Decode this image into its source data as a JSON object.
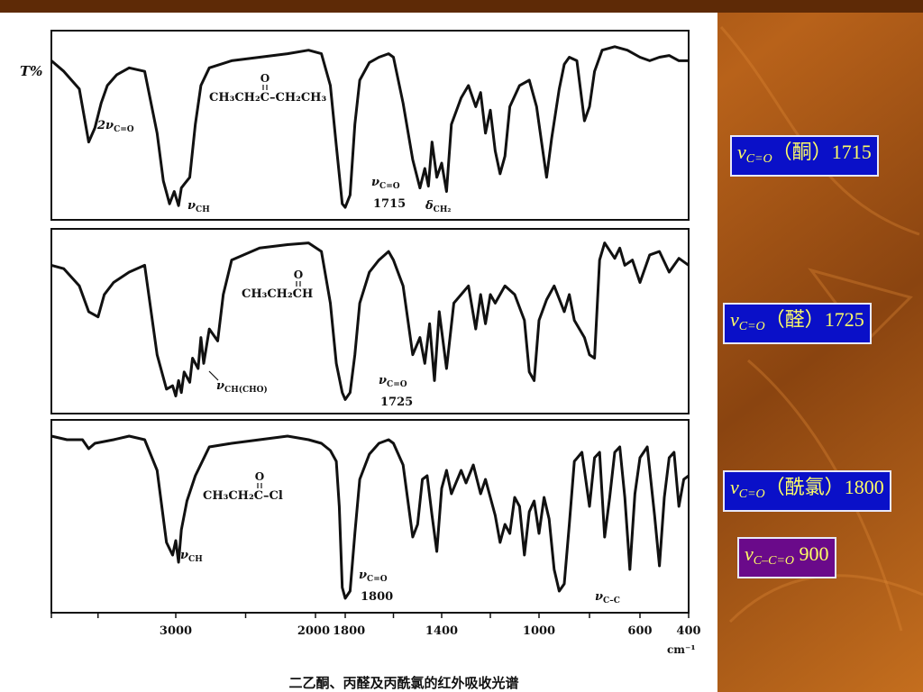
{
  "chart_data": {
    "type": "line",
    "ylabel": "T%",
    "xlabel": "cm⁻¹",
    "x_ticks": [
      3000,
      2000,
      1800,
      1400,
      1000,
      600,
      400
    ],
    "x_tick_labels": [
      "3000",
      "2000",
      "1800",
      "1400",
      "1000",
      "600",
      "400"
    ],
    "caption": "二乙酮、丙醛及丙酰氯的红外吸收光谱",
    "panels": [
      {
        "molecule": {
          "carbonyl_o": "O",
          "left": "CH₃CH₂C",
          "right": "–CH₂CH₃"
        },
        "annotations": [
          {
            "sym": "2ν",
            "sub": "C=O",
            "line2": ""
          },
          {
            "sym": "ν",
            "sub": "CH",
            "line2": ""
          },
          {
            "sym": "ν",
            "sub": "C=O",
            "line2": "1715"
          },
          {
            "sym": "δ",
            "sub": "CH₂",
            "line2": ""
          }
        ],
        "trace": [
          [
            3800,
            14
          ],
          [
            3720,
            20
          ],
          [
            3620,
            30
          ],
          [
            3560,
            60
          ],
          [
            3520,
            52
          ],
          [
            3480,
            38
          ],
          [
            3440,
            28
          ],
          [
            3380,
            22
          ],
          [
            3300,
            18
          ],
          [
            3200,
            20
          ],
          [
            3120,
            55
          ],
          [
            3080,
            82
          ],
          [
            3040,
            95
          ],
          [
            3010,
            88
          ],
          [
            2980,
            96
          ],
          [
            2960,
            86
          ],
          [
            2940,
            84
          ],
          [
            2900,
            80
          ],
          [
            2860,
            50
          ],
          [
            2820,
            28
          ],
          [
            2760,
            18
          ],
          [
            2600,
            14
          ],
          [
            2400,
            12
          ],
          [
            2200,
            10
          ],
          [
            2050,
            8
          ],
          [
            1960,
            10
          ],
          [
            1900,
            28
          ],
          [
            1860,
            62
          ],
          [
            1820,
            95
          ],
          [
            1800,
            97
          ],
          [
            1780,
            90
          ],
          [
            1760,
            50
          ],
          [
            1740,
            25
          ],
          [
            1700,
            15
          ],
          [
            1660,
            12
          ],
          [
            1620,
            10
          ],
          [
            1600,
            12
          ],
          [
            1560,
            38
          ],
          [
            1520,
            70
          ],
          [
            1490,
            86
          ],
          [
            1470,
            75
          ],
          [
            1455,
            85
          ],
          [
            1440,
            60
          ],
          [
            1420,
            80
          ],
          [
            1400,
            72
          ],
          [
            1380,
            88
          ],
          [
            1360,
            50
          ],
          [
            1320,
            35
          ],
          [
            1290,
            28
          ],
          [
            1260,
            40
          ],
          [
            1240,
            32
          ],
          [
            1220,
            55
          ],
          [
            1200,
            42
          ],
          [
            1180,
            65
          ],
          [
            1160,
            78
          ],
          [
            1140,
            68
          ],
          [
            1120,
            40
          ],
          [
            1080,
            28
          ],
          [
            1040,
            25
          ],
          [
            1010,
            40
          ],
          [
            990,
            60
          ],
          [
            970,
            80
          ],
          [
            950,
            58
          ],
          [
            920,
            30
          ],
          [
            900,
            16
          ],
          [
            880,
            12
          ],
          [
            850,
            14
          ],
          [
            820,
            48
          ],
          [
            800,
            40
          ],
          [
            780,
            20
          ],
          [
            750,
            8
          ],
          [
            700,
            6
          ],
          [
            650,
            8
          ],
          [
            600,
            12
          ],
          [
            560,
            14
          ],
          [
            520,
            12
          ],
          [
            480,
            11
          ],
          [
            440,
            14
          ],
          [
            400,
            14
          ]
        ]
      },
      {
        "molecule": {
          "carbonyl_o": "O",
          "left": "CH₃CH₂CH",
          "right": ""
        },
        "annotations": [
          {
            "sym": "ν",
            "sub": "CH(CHO)",
            "line2": ""
          },
          {
            "sym": "ν",
            "sub": "C=O",
            "line2": "1725"
          }
        ],
        "trace": [
          [
            3800,
            18
          ],
          [
            3720,
            20
          ],
          [
            3620,
            30
          ],
          [
            3560,
            45
          ],
          [
            3500,
            48
          ],
          [
            3460,
            35
          ],
          [
            3400,
            28
          ],
          [
            3300,
            22
          ],
          [
            3200,
            18
          ],
          [
            3120,
            70
          ],
          [
            3060,
            90
          ],
          [
            3020,
            88
          ],
          [
            3000,
            94
          ],
          [
            2980,
            85
          ],
          [
            2960,
            92
          ],
          [
            2940,
            80
          ],
          [
            2900,
            86
          ],
          [
            2880,
            72
          ],
          [
            2840,
            78
          ],
          [
            2820,
            60
          ],
          [
            2800,
            75
          ],
          [
            2760,
            55
          ],
          [
            2700,
            62
          ],
          [
            2660,
            35
          ],
          [
            2600,
            15
          ],
          [
            2400,
            8
          ],
          [
            2200,
            6
          ],
          [
            2050,
            5
          ],
          [
            1960,
            10
          ],
          [
            1900,
            40
          ],
          [
            1860,
            75
          ],
          [
            1820,
            92
          ],
          [
            1800,
            96
          ],
          [
            1780,
            92
          ],
          [
            1760,
            70
          ],
          [
            1740,
            40
          ],
          [
            1700,
            22
          ],
          [
            1660,
            15
          ],
          [
            1620,
            10
          ],
          [
            1600,
            15
          ],
          [
            1560,
            30
          ],
          [
            1520,
            70
          ],
          [
            1490,
            60
          ],
          [
            1470,
            75
          ],
          [
            1450,
            52
          ],
          [
            1430,
            85
          ],
          [
            1410,
            45
          ],
          [
            1380,
            78
          ],
          [
            1350,
            40
          ],
          [
            1320,
            35
          ],
          [
            1290,
            30
          ],
          [
            1260,
            55
          ],
          [
            1240,
            35
          ],
          [
            1220,
            52
          ],
          [
            1200,
            35
          ],
          [
            1180,
            40
          ],
          [
            1140,
            30
          ],
          [
            1100,
            35
          ],
          [
            1060,
            50
          ],
          [
            1040,
            80
          ],
          [
            1020,
            85
          ],
          [
            1000,
            50
          ],
          [
            970,
            38
          ],
          [
            940,
            30
          ],
          [
            900,
            45
          ],
          [
            880,
            35
          ],
          [
            860,
            50
          ],
          [
            820,
            60
          ],
          [
            800,
            70
          ],
          [
            780,
            72
          ],
          [
            760,
            15
          ],
          [
            740,
            5
          ],
          [
            700,
            14
          ],
          [
            680,
            8
          ],
          [
            660,
            18
          ],
          [
            630,
            15
          ],
          [
            600,
            28
          ],
          [
            560,
            12
          ],
          [
            520,
            10
          ],
          [
            480,
            22
          ],
          [
            440,
            14
          ],
          [
            400,
            18
          ]
        ]
      },
      {
        "molecule": {
          "carbonyl_o": "O",
          "left": "CH₃CH₂C",
          "right": "–Cl"
        },
        "annotations": [
          {
            "sym": "ν",
            "sub": "CH",
            "line2": ""
          },
          {
            "sym": "ν",
            "sub": "C=O",
            "line2": "1800"
          },
          {
            "sym": "ν",
            "sub": "C–C",
            "line2": ""
          }
        ],
        "trace": [
          [
            3800,
            6
          ],
          [
            3700,
            8
          ],
          [
            3600,
            8
          ],
          [
            3560,
            13
          ],
          [
            3520,
            10
          ],
          [
            3400,
            8
          ],
          [
            3300,
            6
          ],
          [
            3200,
            8
          ],
          [
            3120,
            25
          ],
          [
            3060,
            65
          ],
          [
            3020,
            72
          ],
          [
            3000,
            64
          ],
          [
            2980,
            76
          ],
          [
            2960,
            58
          ],
          [
            2920,
            42
          ],
          [
            2860,
            28
          ],
          [
            2760,
            12
          ],
          [
            2600,
            10
          ],
          [
            2400,
            8
          ],
          [
            2200,
            6
          ],
          [
            2050,
            8
          ],
          [
            1960,
            10
          ],
          [
            1900,
            14
          ],
          [
            1860,
            20
          ],
          [
            1840,
            45
          ],
          [
            1820,
            90
          ],
          [
            1800,
            96
          ],
          [
            1780,
            92
          ],
          [
            1760,
            60
          ],
          [
            1740,
            30
          ],
          [
            1700,
            16
          ],
          [
            1660,
            10
          ],
          [
            1620,
            8
          ],
          [
            1600,
            10
          ],
          [
            1560,
            22
          ],
          [
            1520,
            62
          ],
          [
            1500,
            55
          ],
          [
            1480,
            30
          ],
          [
            1460,
            28
          ],
          [
            1440,
            50
          ],
          [
            1420,
            70
          ],
          [
            1400,
            35
          ],
          [
            1380,
            25
          ],
          [
            1360,
            38
          ],
          [
            1320,
            25
          ],
          [
            1300,
            32
          ],
          [
            1270,
            22
          ],
          [
            1240,
            38
          ],
          [
            1220,
            30
          ],
          [
            1180,
            50
          ],
          [
            1160,
            65
          ],
          [
            1140,
            55
          ],
          [
            1120,
            60
          ],
          [
            1100,
            40
          ],
          [
            1080,
            45
          ],
          [
            1060,
            72
          ],
          [
            1040,
            48
          ],
          [
            1020,
            42
          ],
          [
            1000,
            60
          ],
          [
            980,
            40
          ],
          [
            960,
            52
          ],
          [
            940,
            80
          ],
          [
            920,
            92
          ],
          [
            900,
            88
          ],
          [
            880,
            55
          ],
          [
            860,
            20
          ],
          [
            830,
            15
          ],
          [
            800,
            45
          ],
          [
            780,
            18
          ],
          [
            760,
            15
          ],
          [
            740,
            62
          ],
          [
            720,
            40
          ],
          [
            700,
            15
          ],
          [
            680,
            12
          ],
          [
            660,
            40
          ],
          [
            640,
            80
          ],
          [
            620,
            38
          ],
          [
            600,
            18
          ],
          [
            570,
            12
          ],
          [
            540,
            50
          ],
          [
            520,
            78
          ],
          [
            500,
            40
          ],
          [
            480,
            18
          ],
          [
            460,
            15
          ],
          [
            440,
            45
          ],
          [
            420,
            30
          ],
          [
            400,
            28
          ]
        ]
      }
    ]
  },
  "labels": [
    {
      "sym": "ν",
      "sub": "C=O",
      "name": "（酮）",
      "value": "1715"
    },
    {
      "sym": "ν",
      "sub": "C=O",
      "name": "（醛）",
      "value": "1725"
    },
    {
      "sym": "ν",
      "sub": "C=O",
      "name": "（酰氯）",
      "value": "1800"
    },
    {
      "sym": "ν",
      "sub": "C–C=O",
      "name": "",
      "value": " 900"
    }
  ],
  "colors": {
    "bg_dark": "#7a3a08",
    "bg_light": "#c8701c",
    "label_blue": "#0a10c8",
    "label_purple": "#6a0a8a",
    "label_text": "#ffff66"
  }
}
